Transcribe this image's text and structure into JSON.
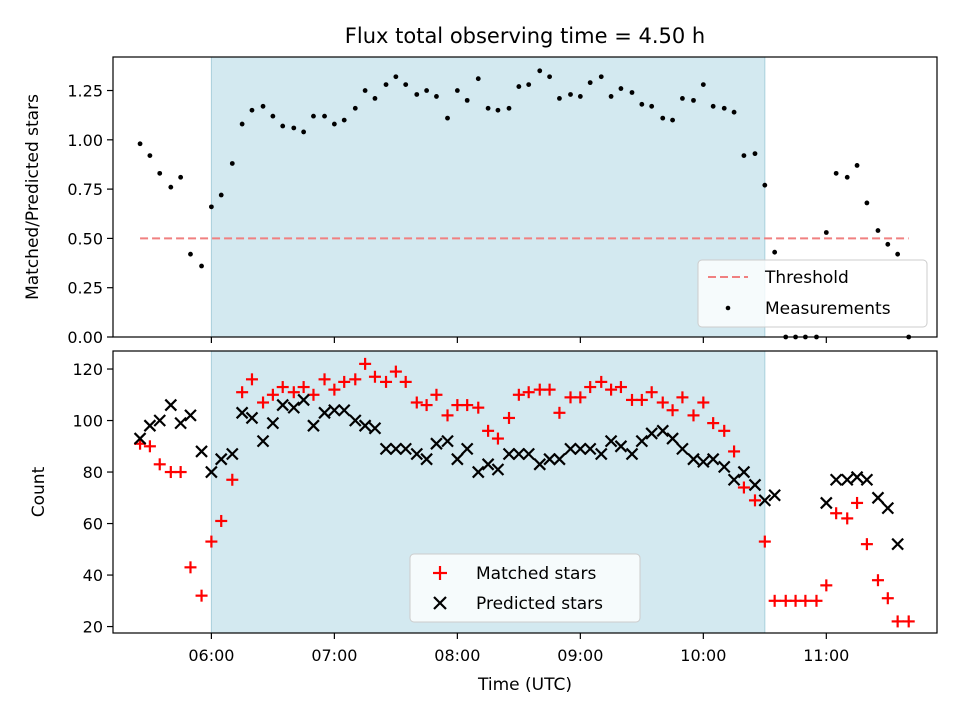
{
  "chart_data": {
    "type": "scatter",
    "title": "Flux total observing time = 4.50 h",
    "xlabel": "Time (UTC)",
    "x_ticks": [
      "06:00",
      "07:00",
      "08:00",
      "09:00",
      "10:00",
      "11:00"
    ],
    "x_tick_hours": [
      6,
      7,
      8,
      9,
      10,
      11
    ],
    "xlim_hours": [
      5.2,
      11.9
    ],
    "observing_window_hours": [
      6.0,
      10.5
    ],
    "colors": {
      "window": "#d3e9f0",
      "threshold": "#f08080",
      "measurements": "#000000",
      "matched": "#ff0000",
      "predicted": "#000000"
    },
    "top": {
      "ylabel": "Matched/Predicted stars",
      "ylim": [
        0,
        1.42
      ],
      "y_ticks": [
        "0.00",
        "0.25",
        "0.50",
        "0.75",
        "1.00",
        "1.25"
      ],
      "legend": {
        "placement": "lower right",
        "threshold_label": "Threshold",
        "measurements_label": "Measurements"
      },
      "threshold": {
        "x": [
          5.42,
          11.67
        ],
        "y": 0.5
      },
      "measurements": [
        [
          5.42,
          0.98
        ],
        [
          5.5,
          0.92
        ],
        [
          5.58,
          0.83
        ],
        [
          5.67,
          0.76
        ],
        [
          5.75,
          0.81
        ],
        [
          5.83,
          0.42
        ],
        [
          5.92,
          0.36
        ],
        [
          6.0,
          0.66
        ],
        [
          6.08,
          0.72
        ],
        [
          6.17,
          0.88
        ],
        [
          6.25,
          1.08
        ],
        [
          6.33,
          1.15
        ],
        [
          6.42,
          1.17
        ],
        [
          6.5,
          1.12
        ],
        [
          6.58,
          1.07
        ],
        [
          6.67,
          1.06
        ],
        [
          6.75,
          1.04
        ],
        [
          6.83,
          1.12
        ],
        [
          6.92,
          1.12
        ],
        [
          7.0,
          1.08
        ],
        [
          7.08,
          1.1
        ],
        [
          7.17,
          1.16
        ],
        [
          7.25,
          1.25
        ],
        [
          7.33,
          1.21
        ],
        [
          7.42,
          1.28
        ],
        [
          7.5,
          1.32
        ],
        [
          7.58,
          1.28
        ],
        [
          7.67,
          1.23
        ],
        [
          7.75,
          1.25
        ],
        [
          7.83,
          1.22
        ],
        [
          7.92,
          1.11
        ],
        [
          8.0,
          1.25
        ],
        [
          8.08,
          1.2
        ],
        [
          8.17,
          1.31
        ],
        [
          8.25,
          1.16
        ],
        [
          8.33,
          1.15
        ],
        [
          8.42,
          1.16
        ],
        [
          8.5,
          1.27
        ],
        [
          8.58,
          1.28
        ],
        [
          8.67,
          1.35
        ],
        [
          8.75,
          1.32
        ],
        [
          8.83,
          1.21
        ],
        [
          8.92,
          1.23
        ],
        [
          9.0,
          1.22
        ],
        [
          9.08,
          1.29
        ],
        [
          9.17,
          1.32
        ],
        [
          9.25,
          1.22
        ],
        [
          9.33,
          1.26
        ],
        [
          9.42,
          1.24
        ],
        [
          9.5,
          1.18
        ],
        [
          9.58,
          1.17
        ],
        [
          9.67,
          1.11
        ],
        [
          9.75,
          1.1
        ],
        [
          9.83,
          1.21
        ],
        [
          9.92,
          1.2
        ],
        [
          10.0,
          1.28
        ],
        [
          10.08,
          1.17
        ],
        [
          10.17,
          1.16
        ],
        [
          10.25,
          1.14
        ],
        [
          10.33,
          0.92
        ],
        [
          10.42,
          0.93
        ],
        [
          10.5,
          0.77
        ],
        [
          10.58,
          0.43
        ],
        [
          10.67,
          0.0
        ],
        [
          10.75,
          0.0
        ],
        [
          10.83,
          0.0
        ],
        [
          10.92,
          0.0
        ],
        [
          11.0,
          0.53
        ],
        [
          11.08,
          0.83
        ],
        [
          11.17,
          0.81
        ],
        [
          11.25,
          0.87
        ],
        [
          11.33,
          0.68
        ],
        [
          11.42,
          0.54
        ],
        [
          11.5,
          0.47
        ],
        [
          11.58,
          0.42
        ],
        [
          11.67,
          0.0
        ]
      ]
    },
    "bottom": {
      "ylabel": "Count",
      "ylim": [
        17.5,
        127
      ],
      "y_ticks": [
        "20",
        "40",
        "60",
        "80",
        "100",
        "120"
      ],
      "legend": {
        "placement": "lower center",
        "matched_label": "Matched stars",
        "predicted_label": "Predicted stars"
      },
      "matched": [
        [
          5.42,
          91
        ],
        [
          5.5,
          90
        ],
        [
          5.58,
          83
        ],
        [
          5.67,
          80
        ],
        [
          5.75,
          80
        ],
        [
          5.83,
          43
        ],
        [
          5.92,
          32
        ],
        [
          6.0,
          53
        ],
        [
          6.08,
          61
        ],
        [
          6.17,
          77
        ],
        [
          6.25,
          111
        ],
        [
          6.33,
          116
        ],
        [
          6.42,
          107
        ],
        [
          6.5,
          110
        ],
        [
          6.58,
          113
        ],
        [
          6.67,
          111
        ],
        [
          6.75,
          113
        ],
        [
          6.83,
          110
        ],
        [
          6.92,
          116
        ],
        [
          7.0,
          112
        ],
        [
          7.08,
          115
        ],
        [
          7.17,
          116
        ],
        [
          7.25,
          122
        ],
        [
          7.33,
          117
        ],
        [
          7.42,
          115
        ],
        [
          7.5,
          119
        ],
        [
          7.58,
          115
        ],
        [
          7.67,
          107
        ],
        [
          7.75,
          106
        ],
        [
          7.83,
          110
        ],
        [
          7.92,
          102
        ],
        [
          8.0,
          106
        ],
        [
          8.08,
          106
        ],
        [
          8.17,
          105
        ],
        [
          8.25,
          96
        ],
        [
          8.33,
          93
        ],
        [
          8.42,
          101
        ],
        [
          8.5,
          110
        ],
        [
          8.58,
          111
        ],
        [
          8.67,
          112
        ],
        [
          8.75,
          112
        ],
        [
          8.83,
          103
        ],
        [
          8.92,
          109
        ],
        [
          9.0,
          109
        ],
        [
          9.08,
          113
        ],
        [
          9.17,
          115
        ],
        [
          9.25,
          112
        ],
        [
          9.33,
          113
        ],
        [
          9.42,
          108
        ],
        [
          9.5,
          108
        ],
        [
          9.58,
          111
        ],
        [
          9.67,
          107
        ],
        [
          9.75,
          104
        ],
        [
          9.83,
          109
        ],
        [
          9.92,
          102
        ],
        [
          10.0,
          107
        ],
        [
          10.08,
          99
        ],
        [
          10.17,
          96
        ],
        [
          10.25,
          88
        ],
        [
          10.33,
          74
        ],
        [
          10.42,
          69
        ],
        [
          10.5,
          53
        ],
        [
          10.58,
          30
        ],
        [
          10.67,
          30
        ],
        [
          10.75,
          30
        ],
        [
          10.83,
          30
        ],
        [
          10.92,
          30
        ],
        [
          11.0,
          36
        ],
        [
          11.08,
          64
        ],
        [
          11.17,
          62
        ],
        [
          11.25,
          68
        ],
        [
          11.33,
          52
        ],
        [
          11.42,
          38
        ],
        [
          11.5,
          31
        ],
        [
          11.58,
          22
        ],
        [
          11.67,
          22
        ]
      ],
      "predicted": [
        [
          5.42,
          93
        ],
        [
          5.5,
          98
        ],
        [
          5.58,
          100
        ],
        [
          5.67,
          106
        ],
        [
          5.75,
          99
        ],
        [
          5.83,
          102
        ],
        [
          5.92,
          88
        ],
        [
          6.0,
          80
        ],
        [
          6.08,
          85
        ],
        [
          6.17,
          87
        ],
        [
          6.25,
          103
        ],
        [
          6.33,
          101
        ],
        [
          6.42,
          92
        ],
        [
          6.5,
          99
        ],
        [
          6.58,
          106
        ],
        [
          6.67,
          105
        ],
        [
          6.75,
          108
        ],
        [
          6.83,
          98
        ],
        [
          6.92,
          103
        ],
        [
          7.0,
          104
        ],
        [
          7.08,
          104
        ],
        [
          7.17,
          100
        ],
        [
          7.25,
          98
        ],
        [
          7.33,
          97
        ],
        [
          7.42,
          89
        ],
        [
          7.5,
          89
        ],
        [
          7.58,
          89
        ],
        [
          7.67,
          87
        ],
        [
          7.75,
          85
        ],
        [
          7.83,
          91
        ],
        [
          7.92,
          92
        ],
        [
          8.0,
          85
        ],
        [
          8.08,
          89
        ],
        [
          8.17,
          80
        ],
        [
          8.25,
          83
        ],
        [
          8.33,
          81
        ],
        [
          8.42,
          87
        ],
        [
          8.5,
          87
        ],
        [
          8.58,
          87
        ],
        [
          8.67,
          83
        ],
        [
          8.75,
          85
        ],
        [
          8.83,
          85
        ],
        [
          8.92,
          89
        ],
        [
          9.0,
          89
        ],
        [
          9.08,
          89
        ],
        [
          9.17,
          87
        ],
        [
          9.25,
          92
        ],
        [
          9.33,
          90
        ],
        [
          9.42,
          87
        ],
        [
          9.5,
          92
        ],
        [
          9.58,
          95
        ],
        [
          9.67,
          96
        ],
        [
          9.75,
          93
        ],
        [
          9.83,
          89
        ],
        [
          9.92,
          85
        ],
        [
          10.0,
          84
        ],
        [
          10.08,
          85
        ],
        [
          10.17,
          82
        ],
        [
          10.25,
          77
        ],
        [
          10.33,
          80
        ],
        [
          10.42,
          75
        ],
        [
          10.5,
          69
        ],
        [
          10.58,
          71
        ],
        [
          11.0,
          68
        ],
        [
          11.08,
          77
        ],
        [
          11.17,
          77
        ],
        [
          11.25,
          78
        ],
        [
          11.33,
          77
        ],
        [
          11.42,
          70
        ],
        [
          11.5,
          66
        ],
        [
          11.58,
          52
        ]
      ]
    }
  }
}
